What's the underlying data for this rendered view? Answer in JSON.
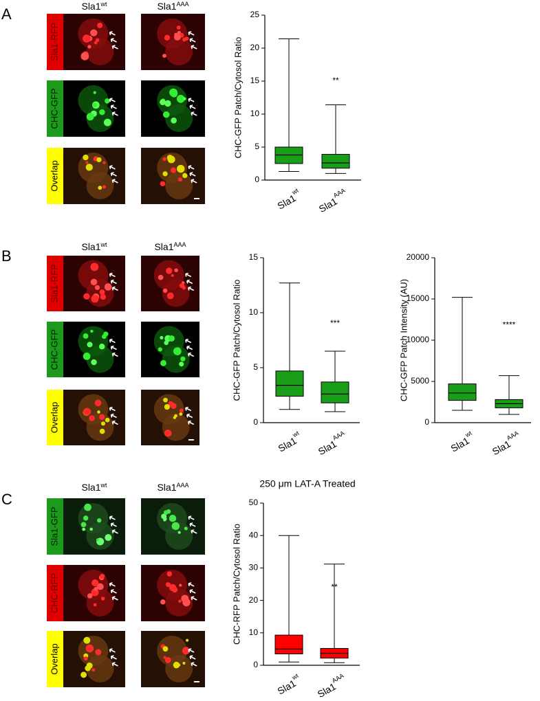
{
  "panels": [
    {
      "letter": "A",
      "columns": [
        {
          "text": "Sla1",
          "sup": "wt"
        },
        {
          "text": "Sla1",
          "sup": "AAA"
        }
      ],
      "rows": [
        "Sla1-RFP",
        "CHC-GFP",
        "Overlap"
      ]
    },
    {
      "letter": "B",
      "columns": [
        {
          "text": "Sla1",
          "sup": "wt"
        },
        {
          "text": "Sla1",
          "sup": "AAA"
        }
      ],
      "rows": [
        "Sla1-RFP",
        "CHC-GFP",
        "Overlap"
      ]
    },
    {
      "letter": "C",
      "columns": [
        {
          "text": "Sla1",
          "sup": "wt"
        },
        {
          "text": "Sla1",
          "sup": "AAA"
        }
      ],
      "rows": [
        "Sla1-GFP",
        "CHC-RFP",
        "Overlap"
      ]
    }
  ],
  "chart_data": [
    {
      "type": "box",
      "y_label": "CHC-GFP Patch/Cytosol Ratio",
      "color": "#1a9e1a",
      "categories": [
        {
          "text": "Sla1",
          "sup": "wt"
        },
        {
          "text": "Sla1",
          "sup": "AAA"
        }
      ],
      "boxes": [
        {
          "min": 1.3,
          "q1": 2.5,
          "median": 3.8,
          "q3": 5.0,
          "max": 21.4
        },
        {
          "min": 1.0,
          "q1": 1.8,
          "median": 2.6,
          "q3": 3.9,
          "max": 11.4
        }
      ],
      "annotations": [
        {
          "text": "**",
          "category": 1
        }
      ],
      "ylim": [
        0,
        25
      ],
      "yticks": [
        0,
        5,
        10,
        15,
        20,
        25
      ]
    },
    {
      "type": "box",
      "y_label": "CHC-GFP Patch/Cytosol Ratio",
      "color": "#1a9e1a",
      "categories": [
        {
          "text": "Sla1",
          "sup": "wt"
        },
        {
          "text": "Sla1",
          "sup": "AAA"
        }
      ],
      "boxes": [
        {
          "min": 1.2,
          "q1": 2.4,
          "median": 3.4,
          "q3": 4.7,
          "max": 12.7
        },
        {
          "min": 1.0,
          "q1": 1.8,
          "median": 2.6,
          "q3": 3.7,
          "max": 6.5
        }
      ],
      "annotations": [
        {
          "text": "***",
          "category": 1
        }
      ],
      "ylim": [
        0,
        15
      ],
      "yticks": [
        0,
        5,
        10,
        15
      ]
    },
    {
      "type": "box",
      "y_label": "CHC-GFP Patch Intensity (AU)",
      "color": "#1a9e1a",
      "categories": [
        {
          "text": "Sla1",
          "sup": "wt"
        },
        {
          "text": "Sla1",
          "sup": "AAA"
        }
      ],
      "boxes": [
        {
          "min": 1500,
          "q1": 2700,
          "median": 3600,
          "q3": 4700,
          "max": 15200
        },
        {
          "min": 1000,
          "q1": 1800,
          "median": 2300,
          "q3": 2800,
          "max": 5700
        }
      ],
      "annotations": [
        {
          "text": "****",
          "category": 1
        }
      ],
      "ylim": [
        0,
        20000
      ],
      "yticks": [
        0,
        5000,
        10000,
        15000,
        20000
      ]
    },
    {
      "type": "box",
      "title": "250 μm LAT-A Treated",
      "y_label": "CHC-RFP Patch/Cytosol Ratio",
      "color": "#ff0000",
      "categories": [
        {
          "text": "Sla1",
          "sup": "wt"
        },
        {
          "text": "Sla1",
          "sup": "AAA"
        }
      ],
      "boxes": [
        {
          "min": 1.0,
          "q1": 3.5,
          "median": 5.0,
          "q3": 9.3,
          "max": 40.0
        },
        {
          "min": 0.8,
          "q1": 2.2,
          "median": 3.7,
          "q3": 5.2,
          "max": 31.2
        }
      ],
      "annotations": [
        {
          "text": "**",
          "category": 1
        }
      ],
      "ylim": [
        0,
        50
      ],
      "yticks": [
        0,
        10,
        20,
        30,
        40,
        50
      ]
    }
  ]
}
